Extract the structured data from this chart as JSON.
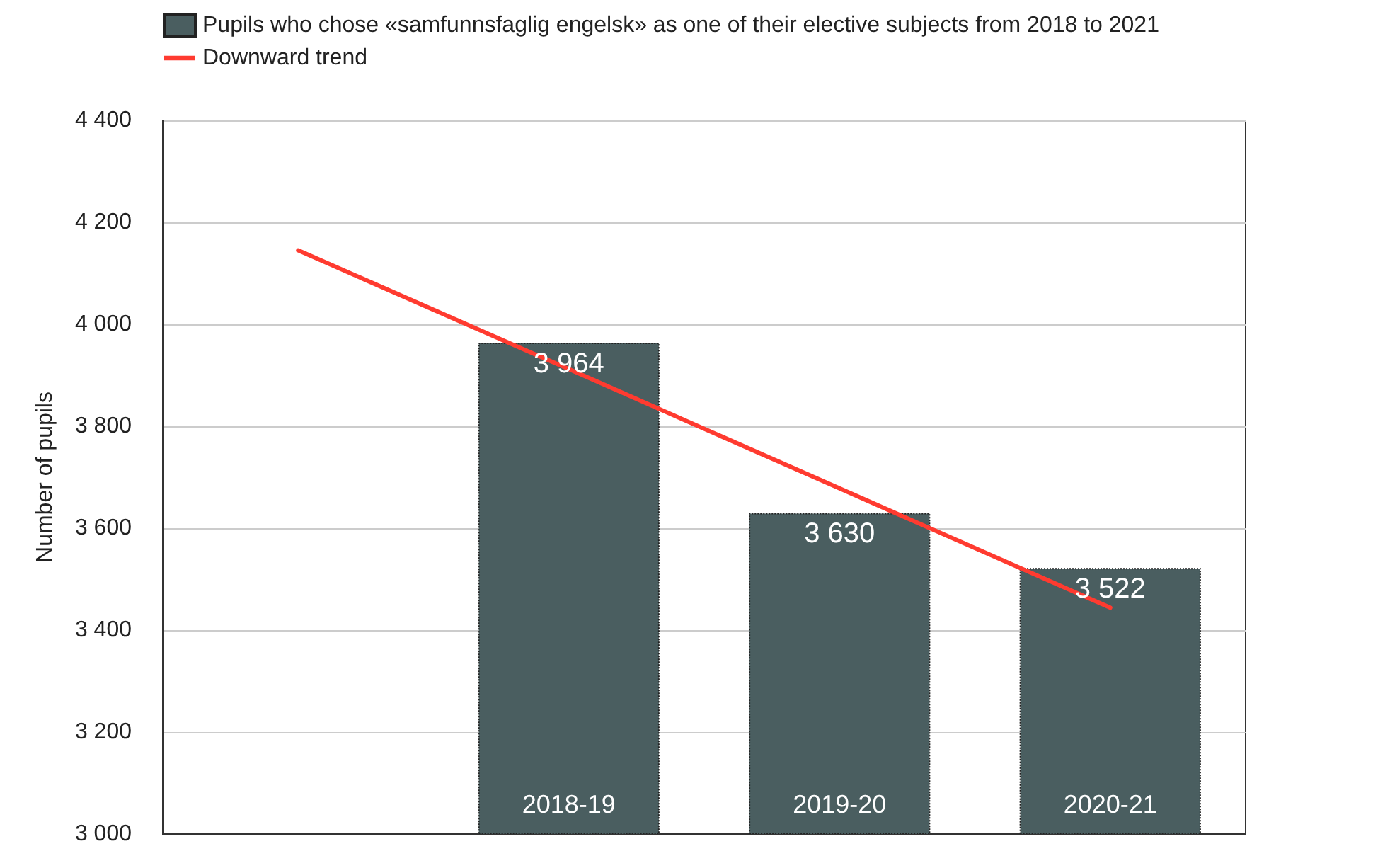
{
  "chart_data": {
    "type": "bar",
    "categories": [
      null,
      "2018-19",
      "2019-20",
      "2020-21"
    ],
    "series": [
      {
        "name": "Pupils who chose «samfunnsfaglig engelsk» as one of their elective subjects from 2018 to 2021",
        "color": "#4a5e60",
        "values": [
          null,
          3964,
          3630,
          3522
        ],
        "value_labels": [
          null,
          "3 964",
          "3 630",
          "3 522"
        ]
      },
      {
        "type": "line",
        "name": "Downward trend",
        "color": "#ff3b30",
        "values": [
          4145,
          3912,
          3678,
          3444
        ],
        "marker": "none"
      }
    ],
    "ylabel": "Number of pupils",
    "ylim": [
      3000,
      4400
    ],
    "yticks": [
      {
        "value": 3000,
        "label": "3 000"
      },
      {
        "value": 3200,
        "label": "3 200"
      },
      {
        "value": 3400,
        "label": "3 400"
      },
      {
        "value": 3600,
        "label": "3 600"
      },
      {
        "value": 3800,
        "label": "3 800"
      },
      {
        "value": 4000,
        "label": "4 000"
      },
      {
        "value": 4200,
        "label": "4 200"
      },
      {
        "value": 4400,
        "label": "4 400"
      }
    ],
    "grid": "y",
    "legend": "top left"
  }
}
